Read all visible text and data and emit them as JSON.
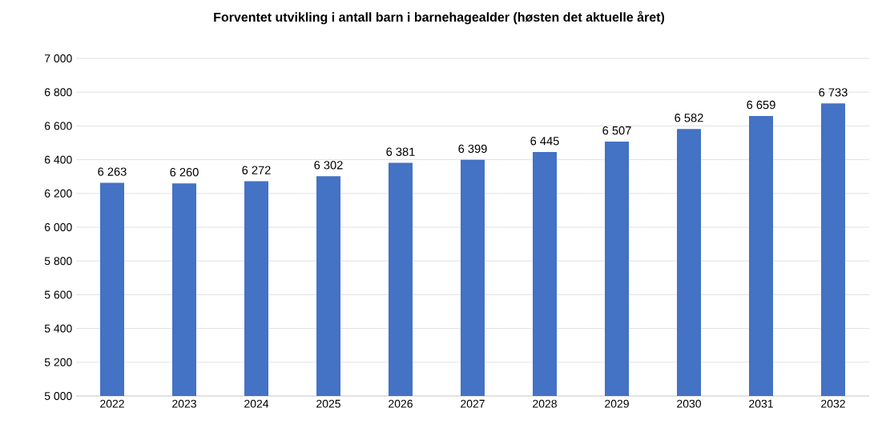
{
  "chart_data": {
    "type": "bar",
    "title": "Forventet utvikling i antall barn i barnehagealder (høsten det aktuelle året)",
    "categories": [
      "2022",
      "2023",
      "2024",
      "2025",
      "2026",
      "2027",
      "2028",
      "2029",
      "2030",
      "2031",
      "2032"
    ],
    "values": [
      6263,
      6260,
      6272,
      6302,
      6381,
      6399,
      6445,
      6507,
      6582,
      6659,
      6733
    ],
    "value_labels": [
      "6 263",
      "6 260",
      "6 272",
      "6 302",
      "6 381",
      "6 399",
      "6 445",
      "6 507",
      "6 582",
      "6 659",
      "6 733"
    ],
    "color": "#4472c4",
    "ylim": [
      5000,
      7000
    ],
    "yticks": [
      {
        "value": 5000,
        "label": "5 000"
      },
      {
        "value": 5200,
        "label": "5 200"
      },
      {
        "value": 5400,
        "label": "5 400"
      },
      {
        "value": 5600,
        "label": "5 600"
      },
      {
        "value": 5800,
        "label": "5 800"
      },
      {
        "value": 6000,
        "label": "6 000"
      },
      {
        "value": 6200,
        "label": "6 200"
      },
      {
        "value": 6400,
        "label": "6 400"
      },
      {
        "value": 6600,
        "label": "6 600"
      },
      {
        "value": 6800,
        "label": "6 800"
      },
      {
        "value": 7000,
        "label": "7 000"
      }
    ],
    "grid": "y"
  }
}
